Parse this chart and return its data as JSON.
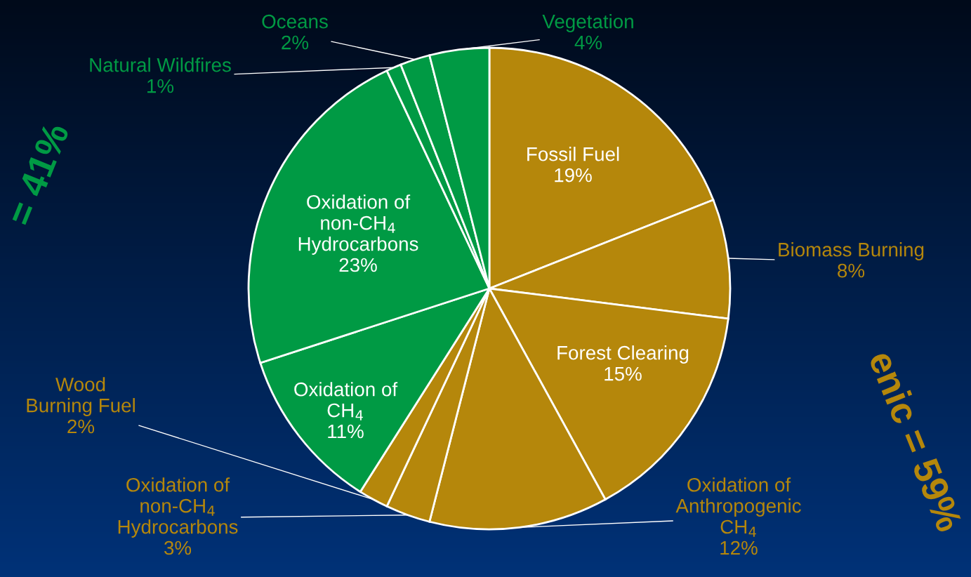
{
  "chart_data": {
    "type": "pie",
    "categories": [
      "Fossil Fuel",
      "Biomass Burning",
      "Forest Clearing",
      "Oxidation of\nAnthropogenic\nCH$_{4}$",
      "Oxidation of\nnon-CH$_{4}$\nHydrocarbons",
      "Wood\nBurning Fuel",
      "Oxidation of\nCH$_{4}$",
      "Oxidation of\nnon-CH$_{4}$\nHydrocarbons",
      "Natural Wildfires",
      "Oceans",
      "Vegetation"
    ],
    "values": [
      19,
      8,
      15,
      12,
      3,
      2,
      11,
      23,
      1,
      2,
      4
    ],
    "value_labels": [
      "19%",
      "8%",
      "15%",
      "12%",
      "3%",
      "2%",
      "11%",
      "23%",
      "1%",
      "2%",
      "4%"
    ],
    "colors": [
      "#b5870b",
      "#b5870b",
      "#b5870b",
      "#b5870b",
      "#b5870b",
      "#b5870b",
      "#009a44",
      "#009a44",
      "#009a44",
      "#009a44",
      "#009a44"
    ],
    "annotations": [
      "= 41%",
      "enic = 59%"
    ]
  }
}
